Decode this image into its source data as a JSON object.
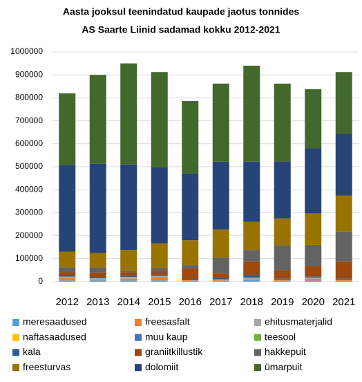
{
  "chart_data": {
    "type": "stacked_bar",
    "title": [
      "Aasta jooksul  teenindatud kaupade jaotus tonnides",
      "AS Saarte Liinid sadamad kokku 2012-2021"
    ],
    "categories": [
      "2012",
      "2013",
      "2014",
      "2015",
      "2016",
      "2017",
      "2018",
      "2019",
      "2020",
      "2021"
    ],
    "ylim": [
      0,
      1000000
    ],
    "yticks": [
      0,
      100000,
      200000,
      300000,
      400000,
      500000,
      600000,
      700000,
      800000,
      900000,
      1000000
    ],
    "grid": true,
    "legend": "bottom",
    "series": [
      {
        "name": "meresaadused",
        "color": "#5b9bd5",
        "values": [
          5000,
          5000,
          5000,
          5000,
          3000,
          3000,
          8000,
          3000,
          5000,
          3000
        ]
      },
      {
        "name": "freesasfalt",
        "color": "#ed7d31",
        "values": [
          12000,
          5000,
          8000,
          15000,
          2000,
          2000,
          2000,
          2000,
          8000,
          2000
        ]
      },
      {
        "name": "ehitusmaterjalid",
        "color": "#a5a5a5",
        "values": [
          5000,
          5000,
          8000,
          5000,
          2000,
          5000,
          8000,
          3000,
          5000,
          3000
        ]
      },
      {
        "name": "naftasaadused",
        "color": "#ffc000",
        "values": [
          0,
          0,
          0,
          0,
          0,
          0,
          0,
          0,
          0,
          0
        ]
      },
      {
        "name": "muu kaup",
        "color": "#4472c4",
        "values": [
          0,
          0,
          0,
          0,
          0,
          0,
          0,
          0,
          0,
          0
        ]
      },
      {
        "name": "teesool",
        "color": "#70ad47",
        "values": [
          0,
          0,
          0,
          0,
          0,
          0,
          0,
          0,
          0,
          0
        ]
      },
      {
        "name": "kala",
        "color": "#255e91",
        "values": [
          5000,
          5000,
          5000,
          5000,
          5000,
          5000,
          10000,
          5000,
          5000,
          5000
        ]
      },
      {
        "name": "graniitkillustik",
        "color": "#9e480e",
        "values": [
          15000,
          20000,
          15000,
          18000,
          45000,
          20000,
          60000,
          37000,
          45000,
          75000
        ]
      },
      {
        "name": "hakkepuit",
        "color": "#636363",
        "values": [
          20000,
          22000,
          5000,
          12000,
          15000,
          70000,
          50000,
          108000,
          92000,
          130000
        ]
      },
      {
        "name": "freesturvas",
        "color": "#997300",
        "values": [
          68000,
          63000,
          92000,
          107000,
          108000,
          122000,
          122000,
          117000,
          137000,
          157000
        ]
      },
      {
        "name": "dolomiit",
        "color": "#264478",
        "values": [
          378000,
          388000,
          372000,
          330000,
          290000,
          295000,
          262000,
          248000,
          283000,
          268000
        ]
      },
      {
        "name": "ümarpuit",
        "color": "#43682b",
        "values": [
          312000,
          387000,
          440000,
          415000,
          316000,
          340000,
          418000,
          339000,
          258000,
          269000
        ]
      }
    ]
  }
}
